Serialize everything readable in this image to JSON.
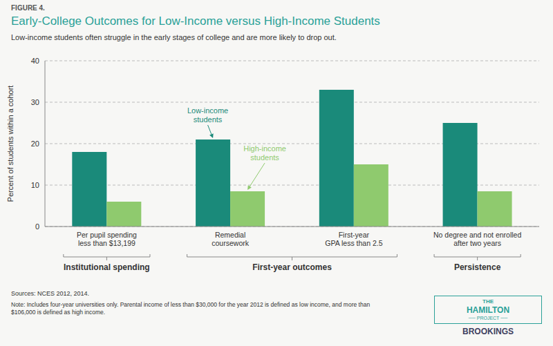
{
  "chart_data": {
    "type": "bar",
    "figure_label": "FIGURE 4.",
    "title": "Early-College Outcomes for Low-Income versus High-Income Students",
    "subtitle": "Low-income students often struggle in the early stages of college and are more likely to drop out.",
    "ylabel": "Percent of students within a cohort",
    "categories": [
      "Per pupil spending\nless than $13,199",
      "Remedial\ncoursework",
      "First-year\nGPA less than 2.5",
      "No degree and not enrolled\nafter two years"
    ],
    "series": [
      {
        "name": "Low-income\nstudents",
        "color": "#1a8a7a",
        "values": [
          18,
          21,
          33,
          25
        ]
      },
      {
        "name": "High-income\nstudents",
        "color": "#8fca6e",
        "values": [
          6,
          8.5,
          15,
          8.5
        ]
      }
    ],
    "groups": [
      {
        "label": "Institutional spending",
        "categories": [
          "Per pupil spending\nless than $13,199"
        ]
      },
      {
        "label": "First-year outcomes",
        "categories": [
          "Remedial\ncoursework",
          "First-year\nGPA less than 2.5"
        ]
      },
      {
        "label": "Persistence",
        "categories": [
          "No degree and not enrolled\nafter two years"
        ]
      }
    ],
    "ylim": [
      0,
      40
    ],
    "yticks": [
      0,
      10,
      20,
      30,
      40
    ],
    "grid": true,
    "sources": "Sources: NCES 2012, 2014.",
    "note": "Note: Includes four-year universities only. Parental income of less than $30,000 for the year 2012 is defined as low income, and more than\n$106,000 is defined as high income.",
    "logo": [
      "THE",
      "HAMILTON",
      "── PROJECT ──",
      "BROOKINGS"
    ],
    "background_color": "#f7f7f5",
    "title_color": "#2aa198"
  }
}
